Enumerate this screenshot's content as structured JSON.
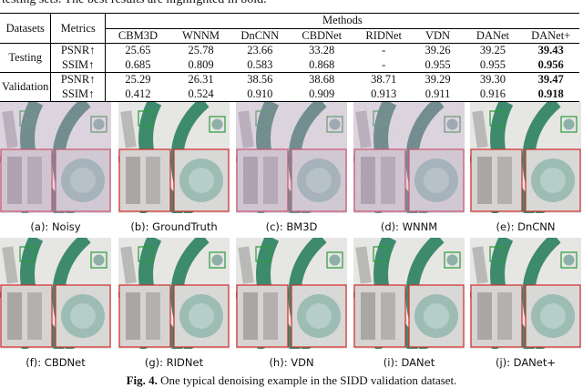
{
  "intro_text": "testing sets. The best results are highlighted in bold.",
  "table": {
    "header": {
      "datasets": "Datasets",
      "metrics": "Metrics",
      "methods": "Methods",
      "columns": [
        "CBM3D",
        "WNNM",
        "DnCNN",
        "CBDNet",
        "RIDNet",
        "VDN",
        "DANet",
        "DANet+"
      ]
    },
    "groups": [
      {
        "name": "Testing",
        "rows": [
          {
            "metric": "PSNR↑",
            "cells": [
              "25.65",
              "25.78",
              "23.66",
              "33.28",
              "-",
              "39.26",
              "39.25",
              "39.43"
            ],
            "best": 7
          },
          {
            "metric": "SSIM↑",
            "cells": [
              "0.685",
              "0.809",
              "0.583",
              "0.868",
              "-",
              "0.955",
              "0.955",
              "0.956"
            ],
            "best": 7
          }
        ]
      },
      {
        "name": "Validation",
        "rows": [
          {
            "metric": "PSNR↑",
            "cells": [
              "25.29",
              "26.31",
              "38.56",
              "38.68",
              "38.71",
              "39.29",
              "39.30",
              "39.47"
            ],
            "best": 7
          },
          {
            "metric": "SSIM↑",
            "cells": [
              "0.412",
              "0.524",
              "0.910",
              "0.909",
              "0.913",
              "0.911",
              "0.916",
              "0.918"
            ],
            "best": 7
          }
        ]
      }
    ]
  },
  "figure": {
    "panels": [
      "(a): Noisy",
      "(b): GroundTruth",
      "(c): BM3D",
      "(d): WNNM",
      "(e): DnCNN",
      "(f): CBDNet",
      "(g): RIDNet",
      "(h): VDN",
      "(i): DANet",
      "(j): DANet+"
    ],
    "caption_label": "Fig. 4.",
    "caption": "One typical denoising example in the SIDD validation dataset."
  }
}
